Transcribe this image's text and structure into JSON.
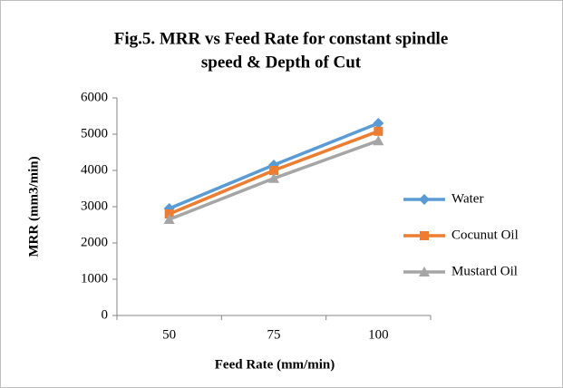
{
  "chart_data": {
    "type": "line",
    "title": [
      "Fig.5. MRR vs Feed Rate for constant spindle",
      "speed & Depth of Cut"
    ],
    "x_label": "Feed Rate (mm/min)",
    "y_label": "MRR (mm3/min)",
    "categories": [
      "50",
      "75",
      "100"
    ],
    "series": [
      {
        "name": "Water",
        "color": "#5b9bd5",
        "marker": "diamond",
        "values": [
          2950,
          4150,
          5300
        ]
      },
      {
        "name": "Cocunut Oil",
        "color": "#ed7d31",
        "marker": "square",
        "values": [
          2800,
          4000,
          5080
        ]
      },
      {
        "name": "Mustard Oil",
        "color": "#a5a5a5",
        "marker": "triangle",
        "values": [
          2650,
          3780,
          4820
        ]
      }
    ],
    "ylim": [
      0,
      6000
    ],
    "yticks": [
      0,
      1000,
      2000,
      3000,
      4000,
      5000,
      6000
    ],
    "grid": false,
    "legend": "right"
  }
}
